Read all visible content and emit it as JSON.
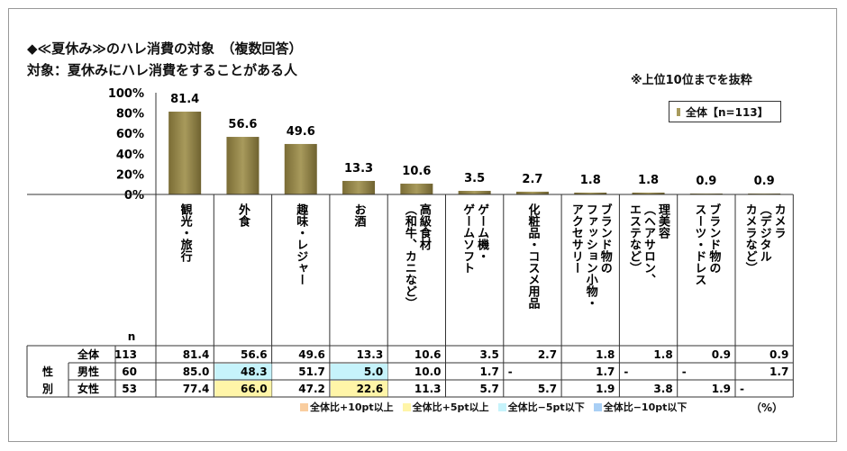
{
  "title": "◆≪夏休み≫のハレ消費の対象　（複数回答）",
  "subtitle": "対象：夏休みにハレ消費をすることがある人",
  "note": "※上位10位までを抜粋",
  "legend_label": "全体【n=113】",
  "unit": "（%）",
  "n_header": "n",
  "group_label": [
    "性",
    "別"
  ],
  "colors": {
    "bar": "#a89a5c",
    "plus10": "#f9cd9f",
    "plus5": "#fff5a8",
    "minus5": "#c6f3fb",
    "minus10": "#a9cff5"
  },
  "highlight_legend": [
    {
      "label": "全体比+10pt以上",
      "color": "#f9cd9f"
    },
    {
      "label": "全体比+5pt以上",
      "color": "#fff5a8"
    },
    {
      "label": "全体比−5pt以下",
      "color": "#c6f3fb"
    },
    {
      "label": "全体比−10pt以下",
      "color": "#a9cff5"
    }
  ],
  "chart_data": {
    "type": "bar",
    "categories": [
      "観光・旅行",
      "外食",
      "趣味・レジャー",
      "お酒",
      "高級食材（和牛、カニなど）",
      "ゲーム機・ゲームソフト",
      "化粧品・コスメ用品",
      "ブランド物のファッション小物・アクセサリー",
      "理美容（ヘアサロン、エステなど）",
      "ブランド物のスーツ・ドレス",
      "カメラ（デジタルカメラなど）"
    ],
    "category_lines": [
      [
        "観光・旅行"
      ],
      [
        "外食"
      ],
      [
        "趣味・レジャー"
      ],
      [
        "お酒"
      ],
      [
        "高級食材",
        "（和牛、カニなど）"
      ],
      [
        "ゲーム機・",
        "ゲームソフト"
      ],
      [
        "化粧品・コスメ用品"
      ],
      [
        "ブランド物の",
        "ファッション小物・",
        "アクセサリー"
      ],
      [
        "理美容",
        "（ヘアサロン、",
        "エステなど）"
      ],
      [
        "ブランド物の",
        "スーツ・ドレス"
      ],
      [
        "カメラ",
        "（デジタル",
        "カメラなど）"
      ]
    ],
    "series": [
      {
        "name": "全体【n=113】",
        "values": [
          81.4,
          56.6,
          49.6,
          13.3,
          10.6,
          3.5,
          2.7,
          1.8,
          1.8,
          0.9,
          0.9
        ]
      }
    ],
    "value_labels": [
      "81.4",
      "56.6",
      "49.6",
      "13.3",
      "10.6",
      "3.5",
      "2.7",
      "1.8",
      "1.8",
      "0.9",
      "0.9"
    ],
    "yticks": [
      "0%",
      "20%",
      "40%",
      "60%",
      "80%",
      "100%"
    ],
    "ylim": [
      0,
      100
    ],
    "table": [
      {
        "label": "全体",
        "n": "113",
        "values": [
          "81.4",
          "56.6",
          "49.6",
          "13.3",
          "10.6",
          "3.5",
          "2.7",
          "1.8",
          "1.8",
          "0.9",
          "0.9"
        ],
        "highlight": [
          "",
          "",
          "",
          "",
          "",
          "",
          "",
          "",
          "",
          "",
          ""
        ]
      },
      {
        "label": "男性",
        "n": "60",
        "values": [
          "85.0",
          "48.3",
          "51.7",
          "5.0",
          "10.0",
          "1.7",
          "-",
          "1.7",
          "-",
          "-",
          "1.7"
        ],
        "highlight": [
          "",
          "minus5",
          "",
          "minus5",
          "",
          "",
          "",
          "",
          "",
          "",
          ""
        ]
      },
      {
        "label": "女性",
        "n": "53",
        "values": [
          "77.4",
          "66.0",
          "47.2",
          "22.6",
          "11.3",
          "5.7",
          "5.7",
          "1.9",
          "3.8",
          "1.9",
          "-"
        ],
        "highlight": [
          "",
          "plus5",
          "",
          "plus5",
          "",
          "",
          "",
          "",
          "",
          "",
          ""
        ]
      }
    ]
  }
}
